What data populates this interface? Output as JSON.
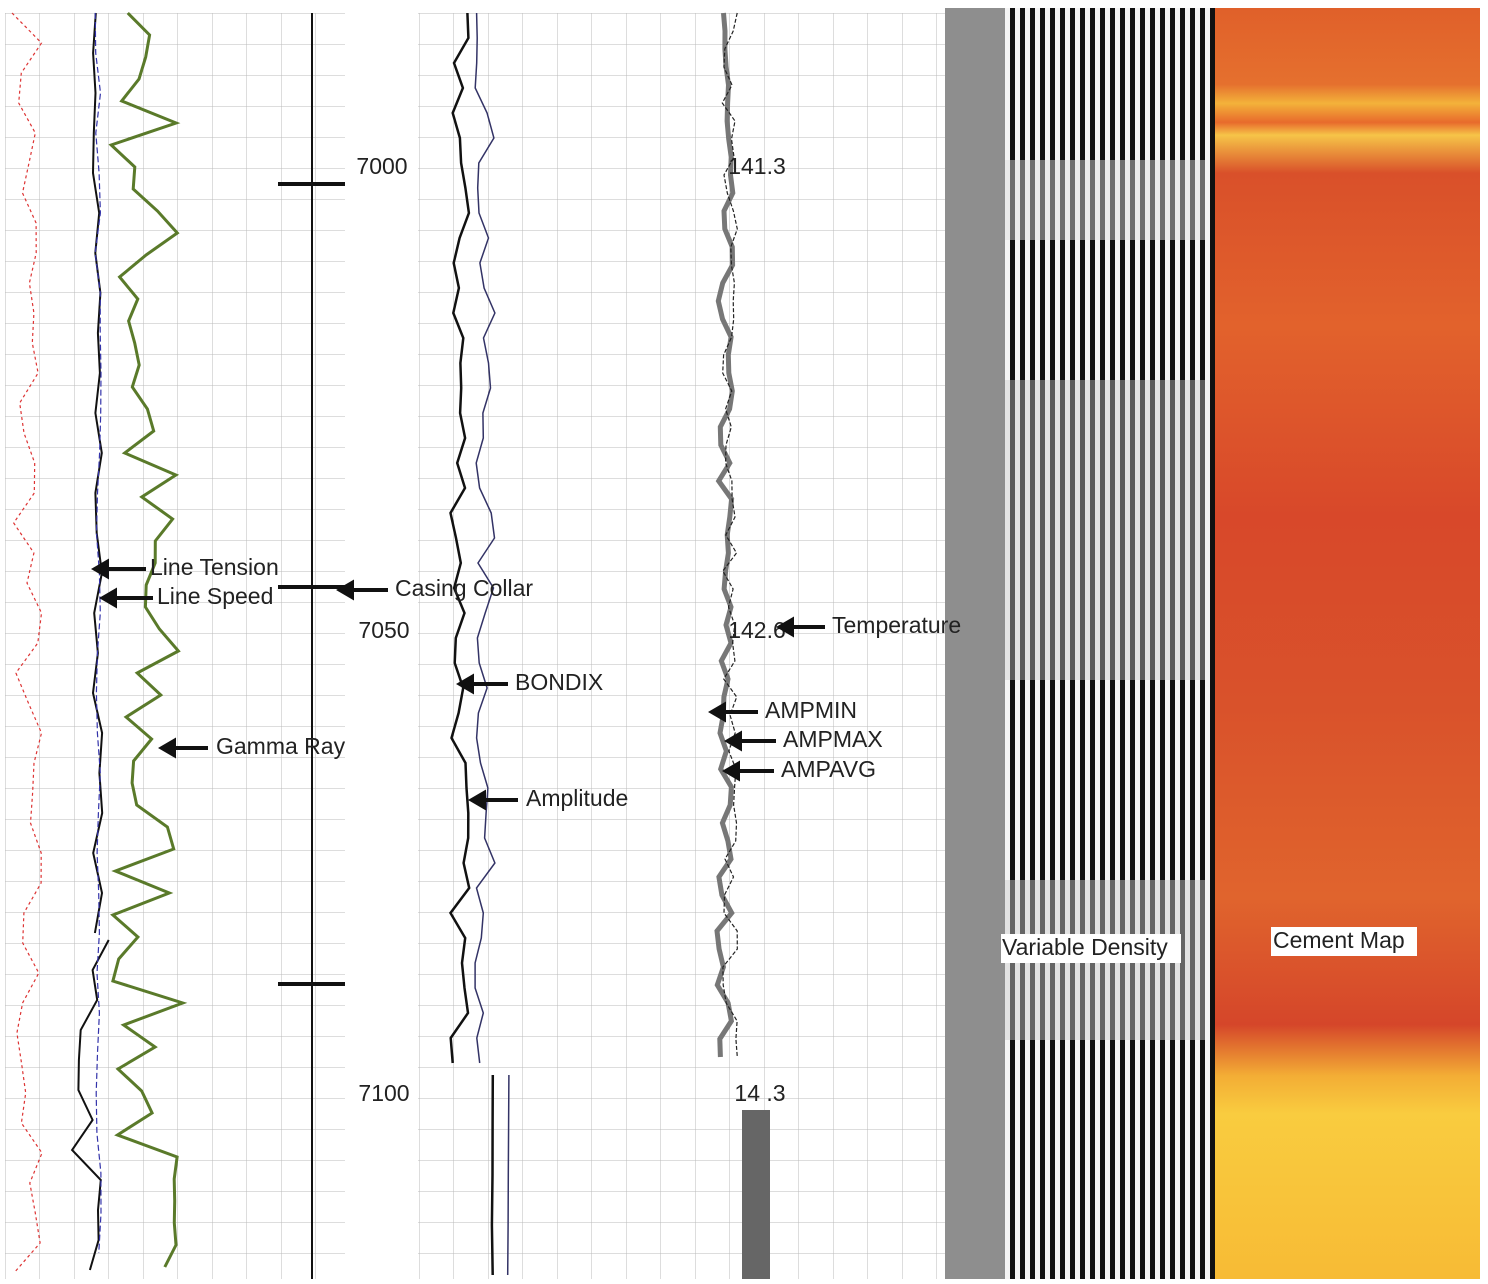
{
  "depth_labels": [
    7000,
    7050,
    7100
  ],
  "temperature_labels": [
    "141.3",
    "142.6",
    "14 .3"
  ],
  "annotations": {
    "line_tension": "Line Tension",
    "line_speed": "Line Speed",
    "casing_collar": "Casing Collar",
    "gamma_ray": "Gamma Ray",
    "bondix": "BONDIX",
    "amplitude": "Amplitude",
    "temperature": "Temperature",
    "ampmin": "AMPMIN",
    "ampmax": "AMPMAX",
    "ampavg": "AMPAVG"
  },
  "track_titles": {
    "variable_density": "Variable Density",
    "cement_map": "Cement Map"
  }
}
